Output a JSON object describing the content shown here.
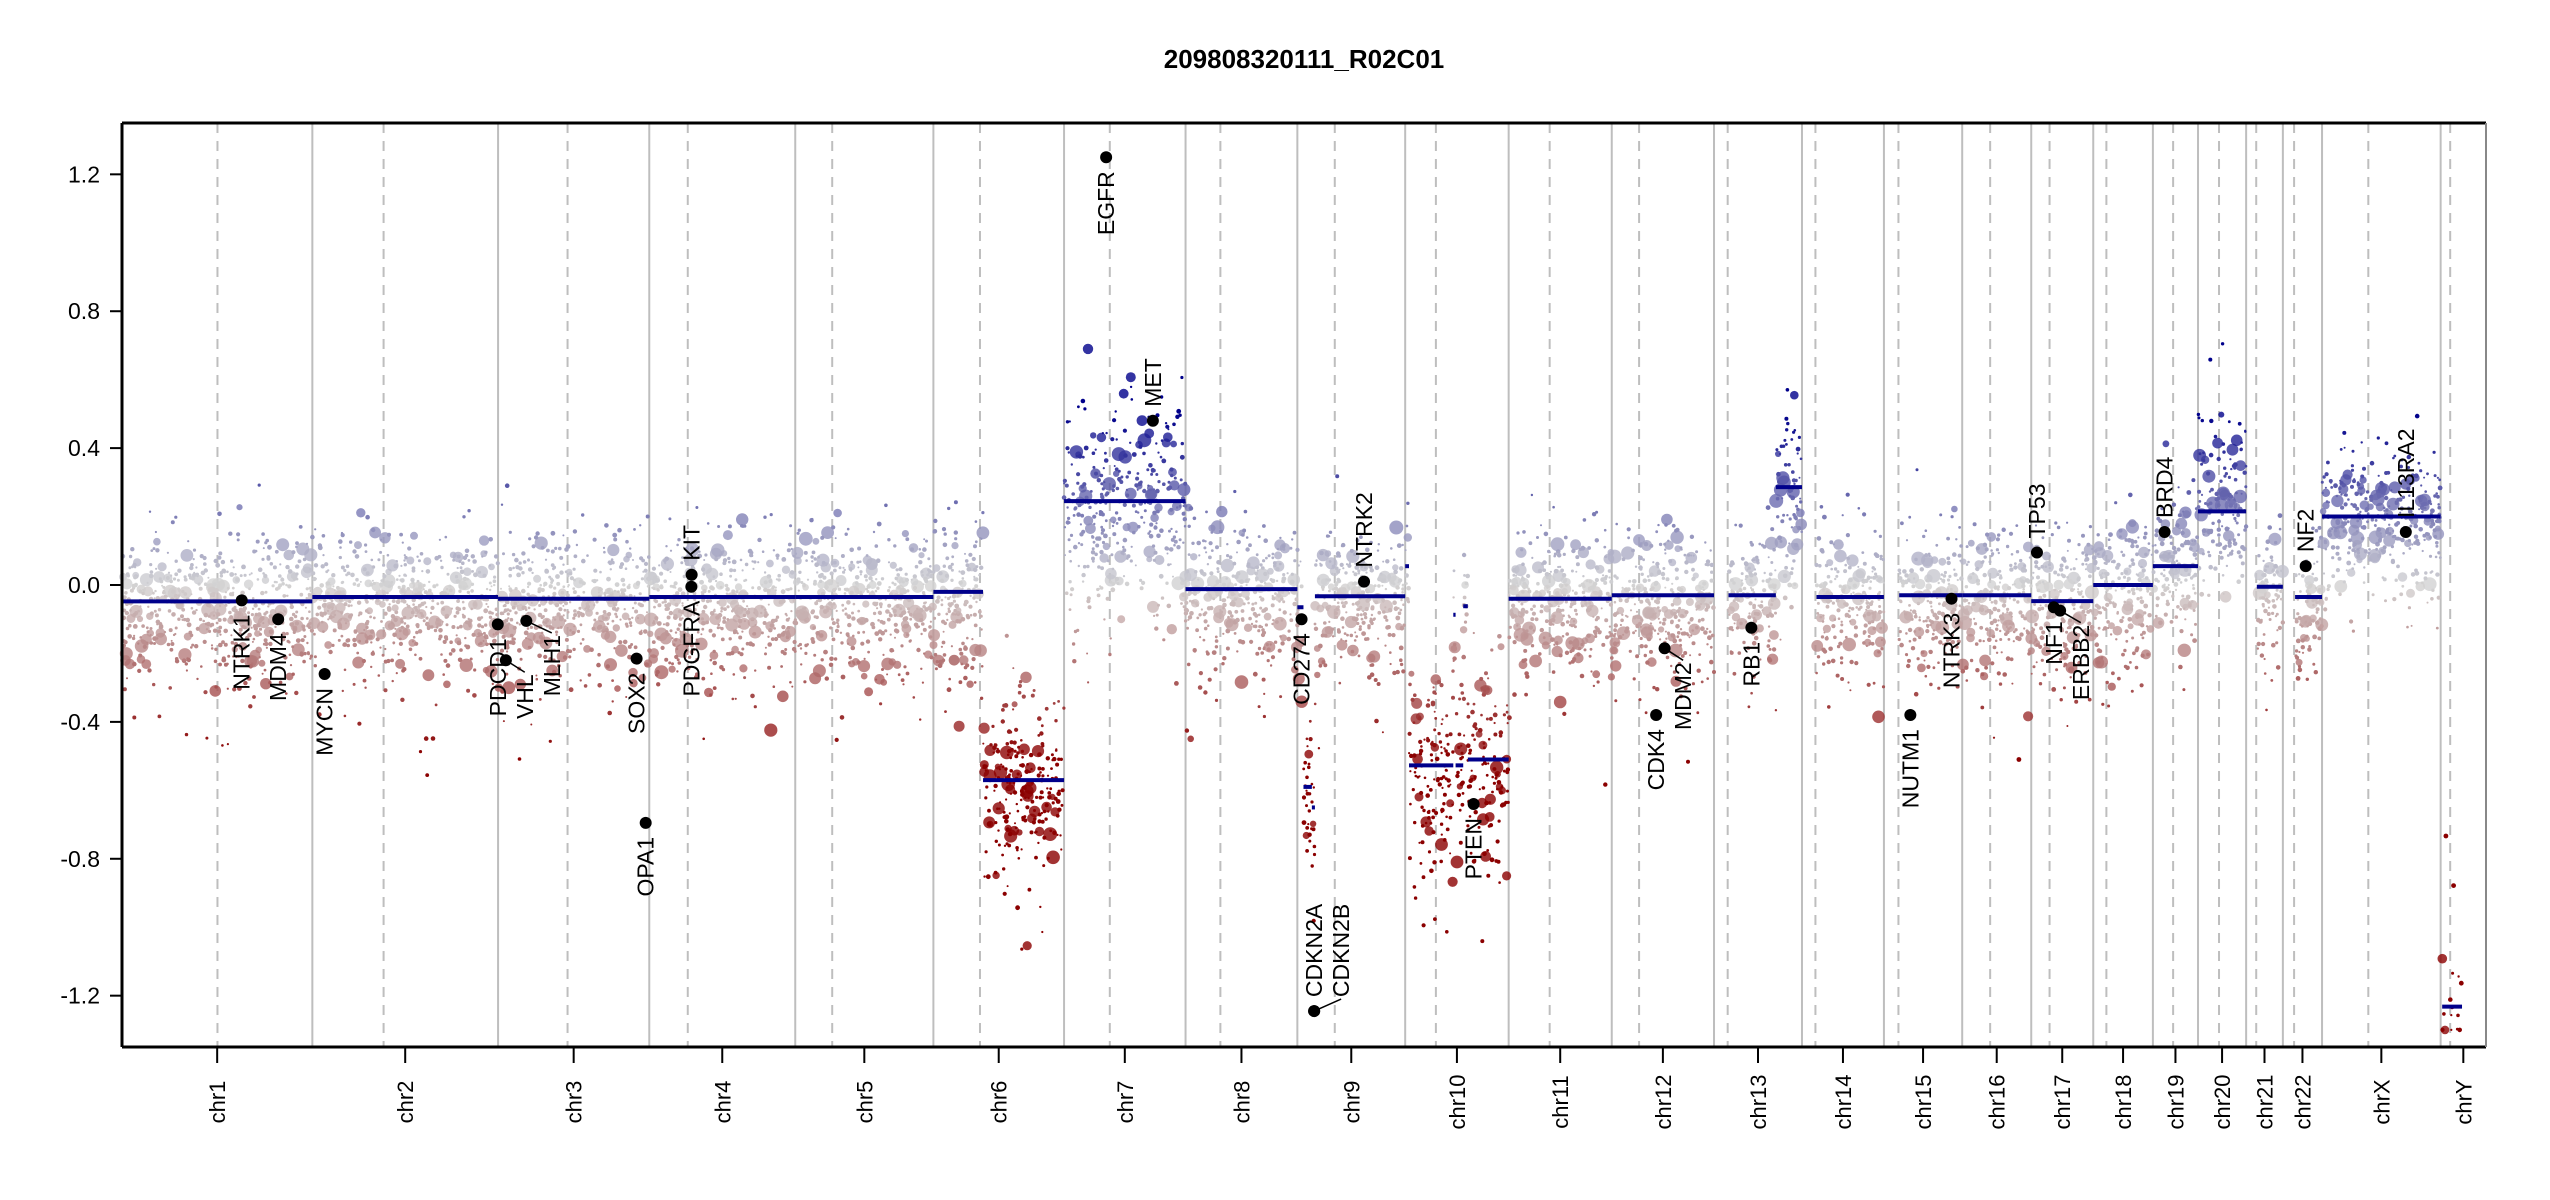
{
  "chart_data": {
    "type": "scatter",
    "title": "209808320111_R02C01",
    "xlabel": "",
    "ylabel": "",
    "ylim": [
      -1.35,
      1.35
    ],
    "yticks": [
      {
        "value": 1.2,
        "label": "1.2"
      },
      {
        "value": 0.8,
        "label": "0.8"
      },
      {
        "value": 0.4,
        "label": "0.4"
      },
      {
        "value": 0.0,
        "label": "0.0"
      },
      {
        "value": -0.4,
        "label": "-0.4"
      },
      {
        "value": -0.8,
        "label": "-0.8"
      },
      {
        "value": -1.2,
        "label": "-1.2"
      }
    ],
    "grid": false,
    "colors": {
      "segment": "#00008b",
      "gain": "#00008b",
      "loss": "#8b0000",
      "neutral": "#d3d3d3",
      "gene": "#000000",
      "boundary": "#bebebe",
      "axis": "#000000"
    },
    "chromosomes": [
      {
        "name": "chr1",
        "length_mb": 249.25,
        "centromere_mb": 125.0
      },
      {
        "name": "chr2",
        "length_mb": 243.2,
        "centromere_mb": 93.3
      },
      {
        "name": "chr3",
        "length_mb": 198.0,
        "centromere_mb": 91.0
      },
      {
        "name": "chr4",
        "length_mb": 191.15,
        "centromere_mb": 50.4
      },
      {
        "name": "chr5",
        "length_mb": 180.9,
        "centromere_mb": 48.4
      },
      {
        "name": "chr6",
        "length_mb": 171.1,
        "centromere_mb": 61.0
      },
      {
        "name": "chr7",
        "length_mb": 159.1,
        "centromere_mb": 59.9
      },
      {
        "name": "chr8",
        "length_mb": 146.4,
        "centromere_mb": 45.6
      },
      {
        "name": "chr9",
        "length_mb": 141.2,
        "centromere_mb": 49.0
      },
      {
        "name": "chr10",
        "length_mb": 135.5,
        "centromere_mb": 40.2
      },
      {
        "name": "chr11",
        "length_mb": 135.0,
        "centromere_mb": 53.7
      },
      {
        "name": "chr12",
        "length_mb": 133.9,
        "centromere_mb": 35.8
      },
      {
        "name": "chr13",
        "length_mb": 115.2,
        "centromere_mb": 17.9
      },
      {
        "name": "chr14",
        "length_mb": 107.3,
        "centromere_mb": 17.6
      },
      {
        "name": "chr15",
        "length_mb": 102.5,
        "centromere_mb": 19.0
      },
      {
        "name": "chr16",
        "length_mb": 90.4,
        "centromere_mb": 36.6
      },
      {
        "name": "chr17",
        "length_mb": 81.2,
        "centromere_mb": 24.0
      },
      {
        "name": "chr18",
        "length_mb": 78.1,
        "centromere_mb": 17.2
      },
      {
        "name": "chr19",
        "length_mb": 59.1,
        "centromere_mb": 26.5
      },
      {
        "name": "chr20",
        "length_mb": 63.0,
        "centromere_mb": 27.5
      },
      {
        "name": "chr21",
        "length_mb": 48.1,
        "centromere_mb": 13.2
      },
      {
        "name": "chr22",
        "length_mb": 51.3,
        "centromere_mb": 14.7
      },
      {
        "name": "chrX",
        "length_mb": 155.3,
        "centromere_mb": 60.6
      },
      {
        "name": "chrY",
        "length_mb": 59.4,
        "centromere_mb": 12.5
      }
    ],
    "segments": [
      {
        "chr": "chr1",
        "start_mb": 0,
        "end_mb": 249.25,
        "value": -0.048
      },
      {
        "chr": "chr2",
        "start_mb": 0,
        "end_mb": 243.2,
        "value": -0.035
      },
      {
        "chr": "chr3",
        "start_mb": 0,
        "end_mb": 198.0,
        "value": -0.04
      },
      {
        "chr": "chr4",
        "start_mb": 0,
        "end_mb": 191.15,
        "value": -0.035
      },
      {
        "chr": "chr5",
        "start_mb": 0,
        "end_mb": 180.9,
        "value": -0.035
      },
      {
        "chr": "chr6",
        "start_mb": 0,
        "end_mb": 65,
        "value": -0.02
      },
      {
        "chr": "chr6",
        "start_mb": 65,
        "end_mb": 171.1,
        "value": -0.57
      },
      {
        "chr": "chr7",
        "start_mb": 0,
        "end_mb": 159.1,
        "value": 0.245
      },
      {
        "chr": "chr8",
        "start_mb": 0,
        "end_mb": 146.4,
        "value": -0.012
      },
      {
        "chr": "chr9",
        "start_mb": 0,
        "end_mb": 8,
        "value": -0.065
      },
      {
        "chr": "chr9",
        "start_mb": 8,
        "end_mb": 19,
        "value": -0.59
      },
      {
        "chr": "chr9",
        "start_mb": 19,
        "end_mb": 23,
        "value": -0.65
      },
      {
        "chr": "chr9",
        "start_mb": 23,
        "end_mb": 141.2,
        "value": -0.033
      },
      {
        "chr": "chr10",
        "start_mb": 0,
        "end_mb": 5,
        "value": 0.055
      },
      {
        "chr": "chr10",
        "start_mb": 5,
        "end_mb": 63,
        "value": -0.527
      },
      {
        "chr": "chr10",
        "start_mb": 63,
        "end_mb": 66,
        "value": -0.087
      },
      {
        "chr": "chr10",
        "start_mb": 66,
        "end_mb": 76,
        "value": -0.527
      },
      {
        "chr": "chr10",
        "start_mb": 76,
        "end_mb": 82,
        "value": -0.062
      },
      {
        "chr": "chr10",
        "start_mb": 82,
        "end_mb": 135.5,
        "value": -0.51
      },
      {
        "chr": "chr11",
        "start_mb": 0,
        "end_mb": 135.0,
        "value": -0.04
      },
      {
        "chr": "chr12",
        "start_mb": 0,
        "end_mb": 133.9,
        "value": -0.03
      },
      {
        "chr": "chr13",
        "start_mb": 19,
        "end_mb": 81,
        "value": -0.03
      },
      {
        "chr": "chr13",
        "start_mb": 81,
        "end_mb": 115.2,
        "value": 0.286
      },
      {
        "chr": "chr14",
        "start_mb": 19,
        "end_mb": 107.3,
        "value": -0.035
      },
      {
        "chr": "chr15",
        "start_mb": 20,
        "end_mb": 102.5,
        "value": -0.03
      },
      {
        "chr": "chr16",
        "start_mb": 0,
        "end_mb": 90.4,
        "value": -0.03
      },
      {
        "chr": "chr17",
        "start_mb": 0,
        "end_mb": 81.2,
        "value": -0.047
      },
      {
        "chr": "chr18",
        "start_mb": 0,
        "end_mb": 78.1,
        "value": 0.0
      },
      {
        "chr": "chr19",
        "start_mb": 0,
        "end_mb": 59.1,
        "value": 0.055
      },
      {
        "chr": "chr20",
        "start_mb": 0,
        "end_mb": 63.0,
        "value": 0.215
      },
      {
        "chr": "chr21",
        "start_mb": 14,
        "end_mb": 48.1,
        "value": -0.005
      },
      {
        "chr": "chr22",
        "start_mb": 16,
        "end_mb": 51.3,
        "value": -0.035
      },
      {
        "chr": "chrX",
        "start_mb": 0,
        "end_mb": 155.3,
        "value": 0.2
      },
      {
        "chr": "chrY",
        "start_mb": 2,
        "end_mb": 28,
        "value": -1.232
      }
    ],
    "genes": [
      {
        "name": "NTRK1",
        "chr": "chr1",
        "pos_mb": 156.8,
        "value": -0.045
      },
      {
        "name": "MDM4",
        "chr": "chr1",
        "pos_mb": 204.5,
        "value": -0.1
      },
      {
        "name": "MYCN",
        "chr": "chr2",
        "pos_mb": 16.1,
        "value": -0.26
      },
      {
        "name": "PDCD1",
        "chr": "chr2",
        "pos_mb": 242.8,
        "value": -0.115
      },
      {
        "name": "VHL",
        "chr": "chr3",
        "pos_mb": 10.2,
        "value": -0.22
      },
      {
        "name": "MLH1",
        "chr": "chr3",
        "pos_mb": 37.0,
        "value": -0.105
      },
      {
        "name": "SOX2",
        "chr": "chr3",
        "pos_mb": 181.4,
        "value": -0.215
      },
      {
        "name": "OPA1",
        "chr": "chr3",
        "pos_mb": 193.3,
        "value": -0.695
      },
      {
        "name": "PDGFRA",
        "chr": "chr4",
        "pos_mb": 55.1,
        "value": -0.005
      },
      {
        "name": "KIT",
        "chr": "chr4",
        "pos_mb": 55.5,
        "value": 0.03
      },
      {
        "name": "EGFR",
        "chr": "chr7",
        "pos_mb": 55.1,
        "value": 1.25
      },
      {
        "name": "MET",
        "chr": "chr7",
        "pos_mb": 116.3,
        "value": 0.48
      },
      {
        "name": "CD274",
        "chr": "chr9",
        "pos_mb": 5.5,
        "value": -0.1
      },
      {
        "name": "CDKN2A",
        "chr": "chr9",
        "pos_mb": 21.97,
        "value": -1.245
      },
      {
        "name": "CDKN2B",
        "chr": "chr9",
        "pos_mb": 22.0,
        "value": -1.245
      },
      {
        "name": "NTRK2",
        "chr": "chr9",
        "pos_mb": 87.3,
        "value": 0.01
      },
      {
        "name": "PTEN",
        "chr": "chr10",
        "pos_mb": 89.6,
        "value": -0.64
      },
      {
        "name": "CDK4",
        "chr": "chr12",
        "pos_mb": 58.1,
        "value": -0.38
      },
      {
        "name": "MDM2",
        "chr": "chr12",
        "pos_mb": 69.2,
        "value": -0.185
      },
      {
        "name": "RB1",
        "chr": "chr13",
        "pos_mb": 48.9,
        "value": -0.125
      },
      {
        "name": "NUTM1",
        "chr": "chr15",
        "pos_mb": 34.6,
        "value": -0.38
      },
      {
        "name": "NTRK3",
        "chr": "chr15",
        "pos_mb": 88.5,
        "value": -0.04
      },
      {
        "name": "TP53",
        "chr": "chr17",
        "pos_mb": 7.5,
        "value": 0.095
      },
      {
        "name": "NF1",
        "chr": "chr17",
        "pos_mb": 29.5,
        "value": -0.065
      },
      {
        "name": "ERBB2",
        "chr": "chr17",
        "pos_mb": 37.8,
        "value": -0.075
      },
      {
        "name": "BRD4",
        "chr": "chr19",
        "pos_mb": 15.3,
        "value": 0.155
      },
      {
        "name": "NF2",
        "chr": "chr22",
        "pos_mb": 29.9,
        "value": 0.055
      },
      {
        "name": "IL13RA2",
        "chr": "chrX",
        "pos_mb": 109.7,
        "value": 0.155
      }
    ]
  }
}
